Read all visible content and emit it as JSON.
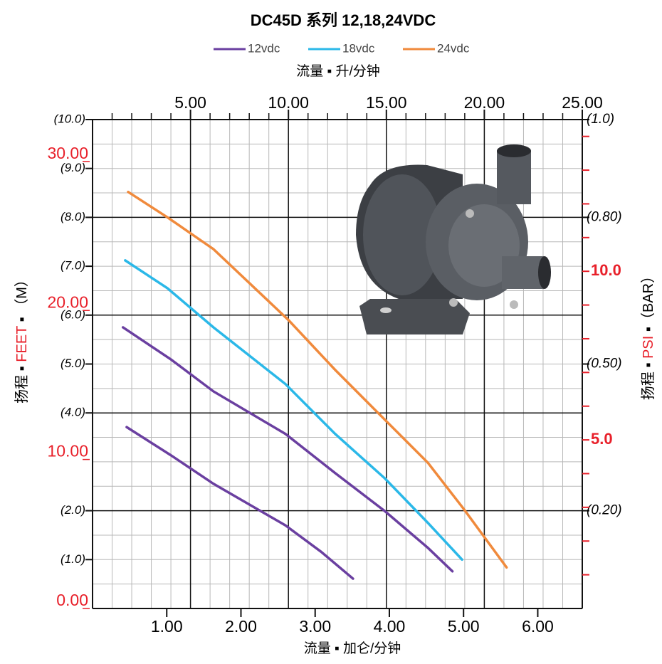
{
  "chart_data": {
    "type": "line",
    "title": "DC45D 系列 12,18,24VDC",
    "xlabel": "流量 ▪ 加仑/分钟",
    "x2label": "流量 ▪ 升/分钟",
    "ylabel": [
      "扬程 ▪ ",
      "FEET",
      " ▪ （M）"
    ],
    "y2label": [
      "扬程 ▪ ",
      "PSI",
      " ▪（BAR）"
    ],
    "xlim": [
      0,
      6.6
    ],
    "xticks": [
      {
        "value": 1,
        "label": "1.00"
      },
      {
        "value": 2,
        "label": "2.00"
      },
      {
        "value": 3,
        "label": "3.00"
      },
      {
        "value": 4,
        "label": "4.00"
      },
      {
        "value": 5,
        "label": "5.00"
      },
      {
        "value": 6,
        "label": "6.00"
      }
    ],
    "x2lim": [
      0,
      25
    ],
    "x2ticks": [
      {
        "value": 5,
        "label": "5.00"
      },
      {
        "value": 10,
        "label": "10.00"
      },
      {
        "value": 15,
        "label": "15.00"
      },
      {
        "value": 20,
        "label": "20.00"
      },
      {
        "value": 25,
        "label": "25.00"
      }
    ],
    "x2grid": [
      1,
      2,
      3,
      4,
      6,
      7,
      8,
      9,
      11,
      12,
      13,
      14,
      16,
      17,
      18,
      19,
      21,
      22,
      23,
      24
    ],
    "ylim": [
      0,
      10
    ],
    "yticks": [
      {
        "value": 1,
        "label": "(1.0)"
      },
      {
        "value": 2,
        "label": "(2.0)"
      },
      {
        "value": 4,
        "label": "(4.0)"
      },
      {
        "value": 5,
        "label": "(5.0)"
      },
      {
        "value": 6,
        "label": "(6.0)"
      },
      {
        "value": 7,
        "label": "(7.0)"
      },
      {
        "value": 8,
        "label": "(8.0)"
      },
      {
        "value": 9,
        "label": "(9.0)"
      },
      {
        "value": 10,
        "label": "(10.0)"
      }
    ],
    "ygrid": [
      0.5,
      1,
      1.5,
      2.5,
      3,
      3.5,
      4.5,
      5,
      5.5,
      6.5,
      7,
      7.5,
      8.5,
      9,
      9.5
    ],
    "ygrid_major": [
      2,
      4,
      6,
      8
    ],
    "yfeet_lim": [
      0,
      32.81
    ],
    "yfeet_ticks": [
      {
        "value": 0,
        "label": "0.00"
      },
      {
        "value": 10,
        "label": "10.00"
      },
      {
        "value": 20,
        "label": "20.00"
      },
      {
        "value": 30,
        "label": "30.00"
      }
    ],
    "y2lim": [
      0,
      1
    ],
    "y2ticks": [
      {
        "value": 0.2,
        "label": "(0.20)"
      },
      {
        "value": 0.5,
        "label": "(0.50)"
      },
      {
        "value": 0.8,
        "label": "(0.80)"
      },
      {
        "value": 1,
        "label": "(1.0)"
      }
    ],
    "y3lim": [
      0,
      14.5
    ],
    "y3ticks": [
      {
        "value": 5,
        "label": "5.0"
      },
      {
        "value": 10,
        "label": "10.0"
      }
    ],
    "y3minor": [
      1,
      2,
      3,
      4,
      6,
      7,
      8,
      9,
      11,
      12,
      13,
      14
    ],
    "series": [
      {
        "name": "12vdc",
        "color": "#6a3fa0",
        "x": [
          0.41,
          1.06,
          1.63,
          2.6,
          3.27,
          3.94,
          4.52,
          4.85
        ],
        "values": [
          5.75,
          5.09,
          4.44,
          3.57,
          2.77,
          1.99,
          1.24,
          0.76
        ]
      },
      {
        "color": "#6a3fa0",
        "x": [
          0.46,
          1.06,
          1.63,
          2.6,
          3.08,
          3.51
        ],
        "values": [
          3.71,
          3.13,
          2.55,
          1.7,
          1.16,
          0.61
        ]
      },
      {
        "name": "18vdc",
        "color": "#2bb8e8",
        "x": [
          0.44,
          1.01,
          1.63,
          2.6,
          3.27,
          3.94,
          4.52,
          4.98
        ],
        "values": [
          7.12,
          6.55,
          5.75,
          4.59,
          3.57,
          2.66,
          1.75,
          1.0
        ]
      },
      {
        "name": "24vdc",
        "color": "#f08a3c",
        "x": [
          0.48,
          1.01,
          1.63,
          2.64,
          3.27,
          3.94,
          4.52,
          5.0,
          5.58
        ],
        "values": [
          8.52,
          8.0,
          7.35,
          5.9,
          4.88,
          3.86,
          2.98,
          2.04,
          0.84
        ]
      }
    ]
  }
}
